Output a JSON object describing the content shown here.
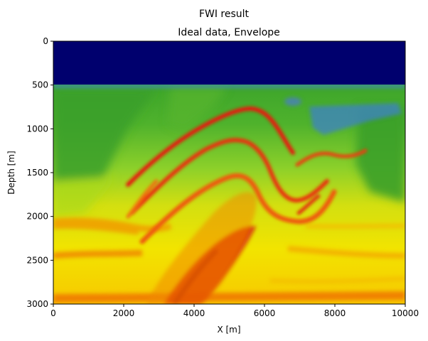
{
  "figure": {
    "suptitle": "FWI result"
  },
  "chart_data": {
    "type": "heatmap",
    "title": "Ideal data, Envelope",
    "xlabel": "X [m]",
    "ylabel": "Depth [m]",
    "xlim": [
      0,
      10000
    ],
    "ylim": [
      3000,
      0
    ],
    "x_ticks": [
      "0",
      "2000",
      "4000",
      "6000",
      "8000",
      "10000"
    ],
    "y_ticks": [
      "0",
      "500",
      "1000",
      "1500",
      "2000",
      "2500",
      "3000"
    ],
    "x_tick_values": [
      0,
      2000,
      4000,
      6000,
      8000,
      10000
    ],
    "y_tick_values": [
      0,
      500,
      1000,
      1500,
      2000,
      2500,
      3000
    ],
    "colormap": "gist_ncar-like (navy, blue, green, yellow, orange, red)",
    "colors": {
      "water": "#00006e",
      "green": "#3da52b",
      "light_green": "#8cd02a",
      "yellow": "#f2e400",
      "orange": "#f7a500",
      "red": "#e40e0e",
      "blue": "#3f82c8"
    },
    "features": {
      "water_layer_depth": [
        0,
        500
      ],
      "anticline_crest": {
        "x": 5200,
        "depth": 800
      },
      "syncline_trough": {
        "x": 7000,
        "depth": 2050
      },
      "high_velocity_bands_depth": [
        2150,
        2450,
        2950
      ],
      "deep_red_core": {
        "x": [
          3200,
          5200
        ],
        "depth": [
          2300,
          3000
        ]
      }
    }
  }
}
